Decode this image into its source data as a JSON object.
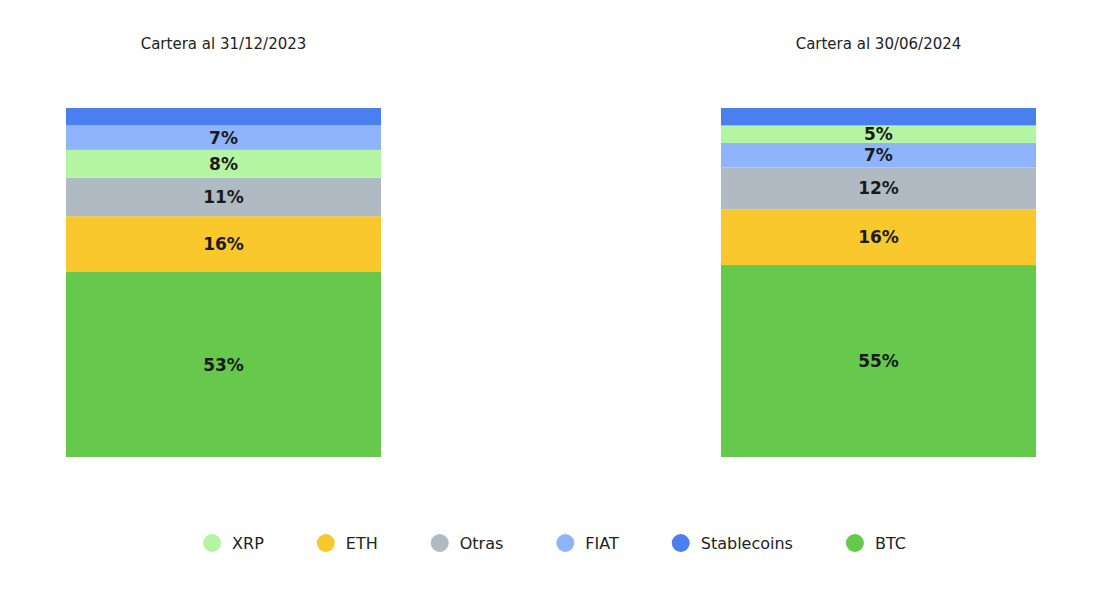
{
  "chart_data": {
    "type": "bar",
    "stacked": true,
    "data_labels": true,
    "tick_labels": "x",
    "legend": "bottom",
    "categories": [
      "Cartera al 31/12/2023",
      "Cartera al 30/06/2024"
    ],
    "ylim": [
      0,
      100
    ],
    "series": [
      {
        "name": "XRP",
        "color": "#b3f5a3",
        "values": [
          8,
          5
        ],
        "value_labels": [
          "8%",
          "5%"
        ]
      },
      {
        "name": "ETH",
        "color": "#f8c82d",
        "values": [
          16,
          16
        ],
        "value_labels": [
          "16%",
          "16%"
        ]
      },
      {
        "name": "Otras",
        "color": "#b0bac3",
        "values": [
          11,
          12
        ],
        "value_labels": [
          "11%",
          "12%"
        ]
      },
      {
        "name": "FIAT",
        "color": "#8fb4fb",
        "values": [
          7,
          7
        ],
        "value_labels": [
          "7%",
          "7%"
        ]
      },
      {
        "name": "Stablecoins",
        "color": "#4a7ff0",
        "values": [
          5,
          5
        ],
        "value_labels": [
          null,
          null
        ]
      },
      {
        "name": "BTC",
        "color": "#67c84e",
        "values": [
          53,
          55
        ],
        "value_labels": [
          "53%",
          "55%"
        ]
      }
    ]
  }
}
